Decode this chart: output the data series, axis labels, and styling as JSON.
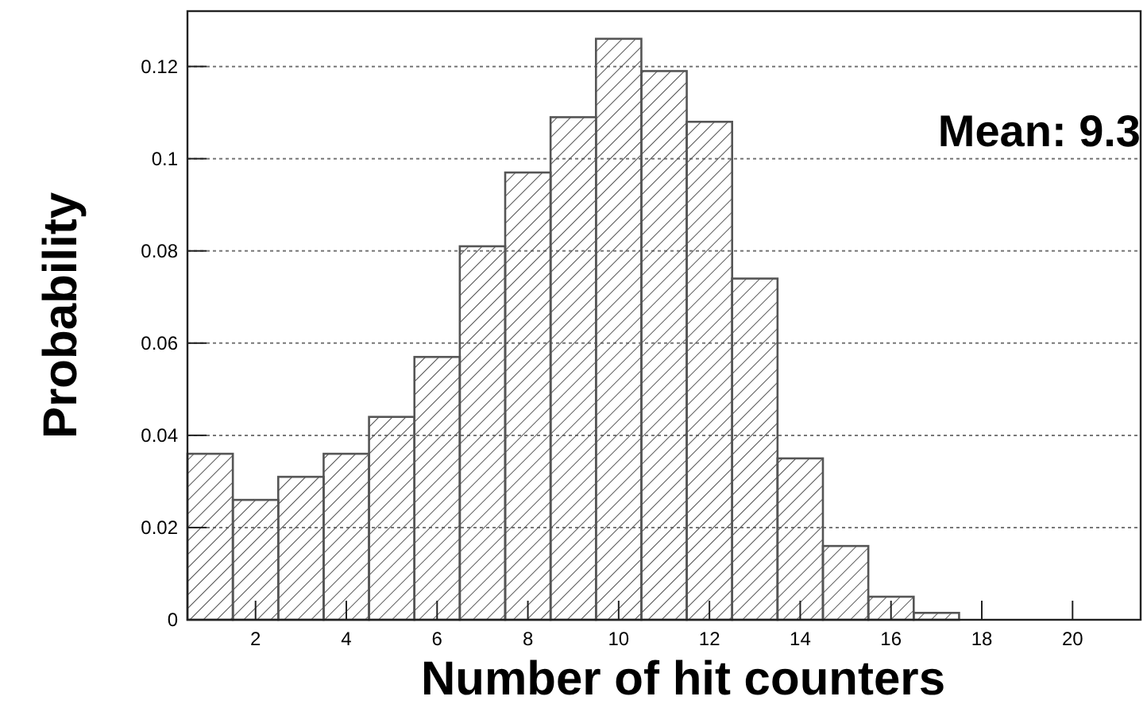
{
  "chart_data": {
    "type": "histogram",
    "xlabel": "Number of hit counters",
    "ylabel": "Probability",
    "annotations": [
      "Mean: 9.3"
    ],
    "bins": [
      0.5,
      1.5,
      2.5,
      3.5,
      4.5,
      5.5,
      6.5,
      7.5,
      8.5,
      9.5,
      10.5,
      11.5,
      12.5,
      13.5,
      14.5,
      15.5,
      16.5,
      17.5
    ],
    "values": [
      0.036,
      0.026,
      0.031,
      0.036,
      0.044,
      0.057,
      0.081,
      0.097,
      0.109,
      0.126,
      0.119,
      0.108,
      0.074,
      0.035,
      0.016,
      0.005,
      0.0015
    ],
    "color": "#555555",
    "xlim": [
      0.5,
      21.5
    ],
    "ylim": [
      0,
      0.132
    ],
    "xticks": [
      2,
      4,
      6,
      8,
      10,
      12,
      14,
      16,
      18,
      20
    ],
    "yticks": [
      0,
      0.02,
      0.04,
      0.06,
      0.08,
      0.1,
      0.12
    ],
    "grid": "y"
  }
}
